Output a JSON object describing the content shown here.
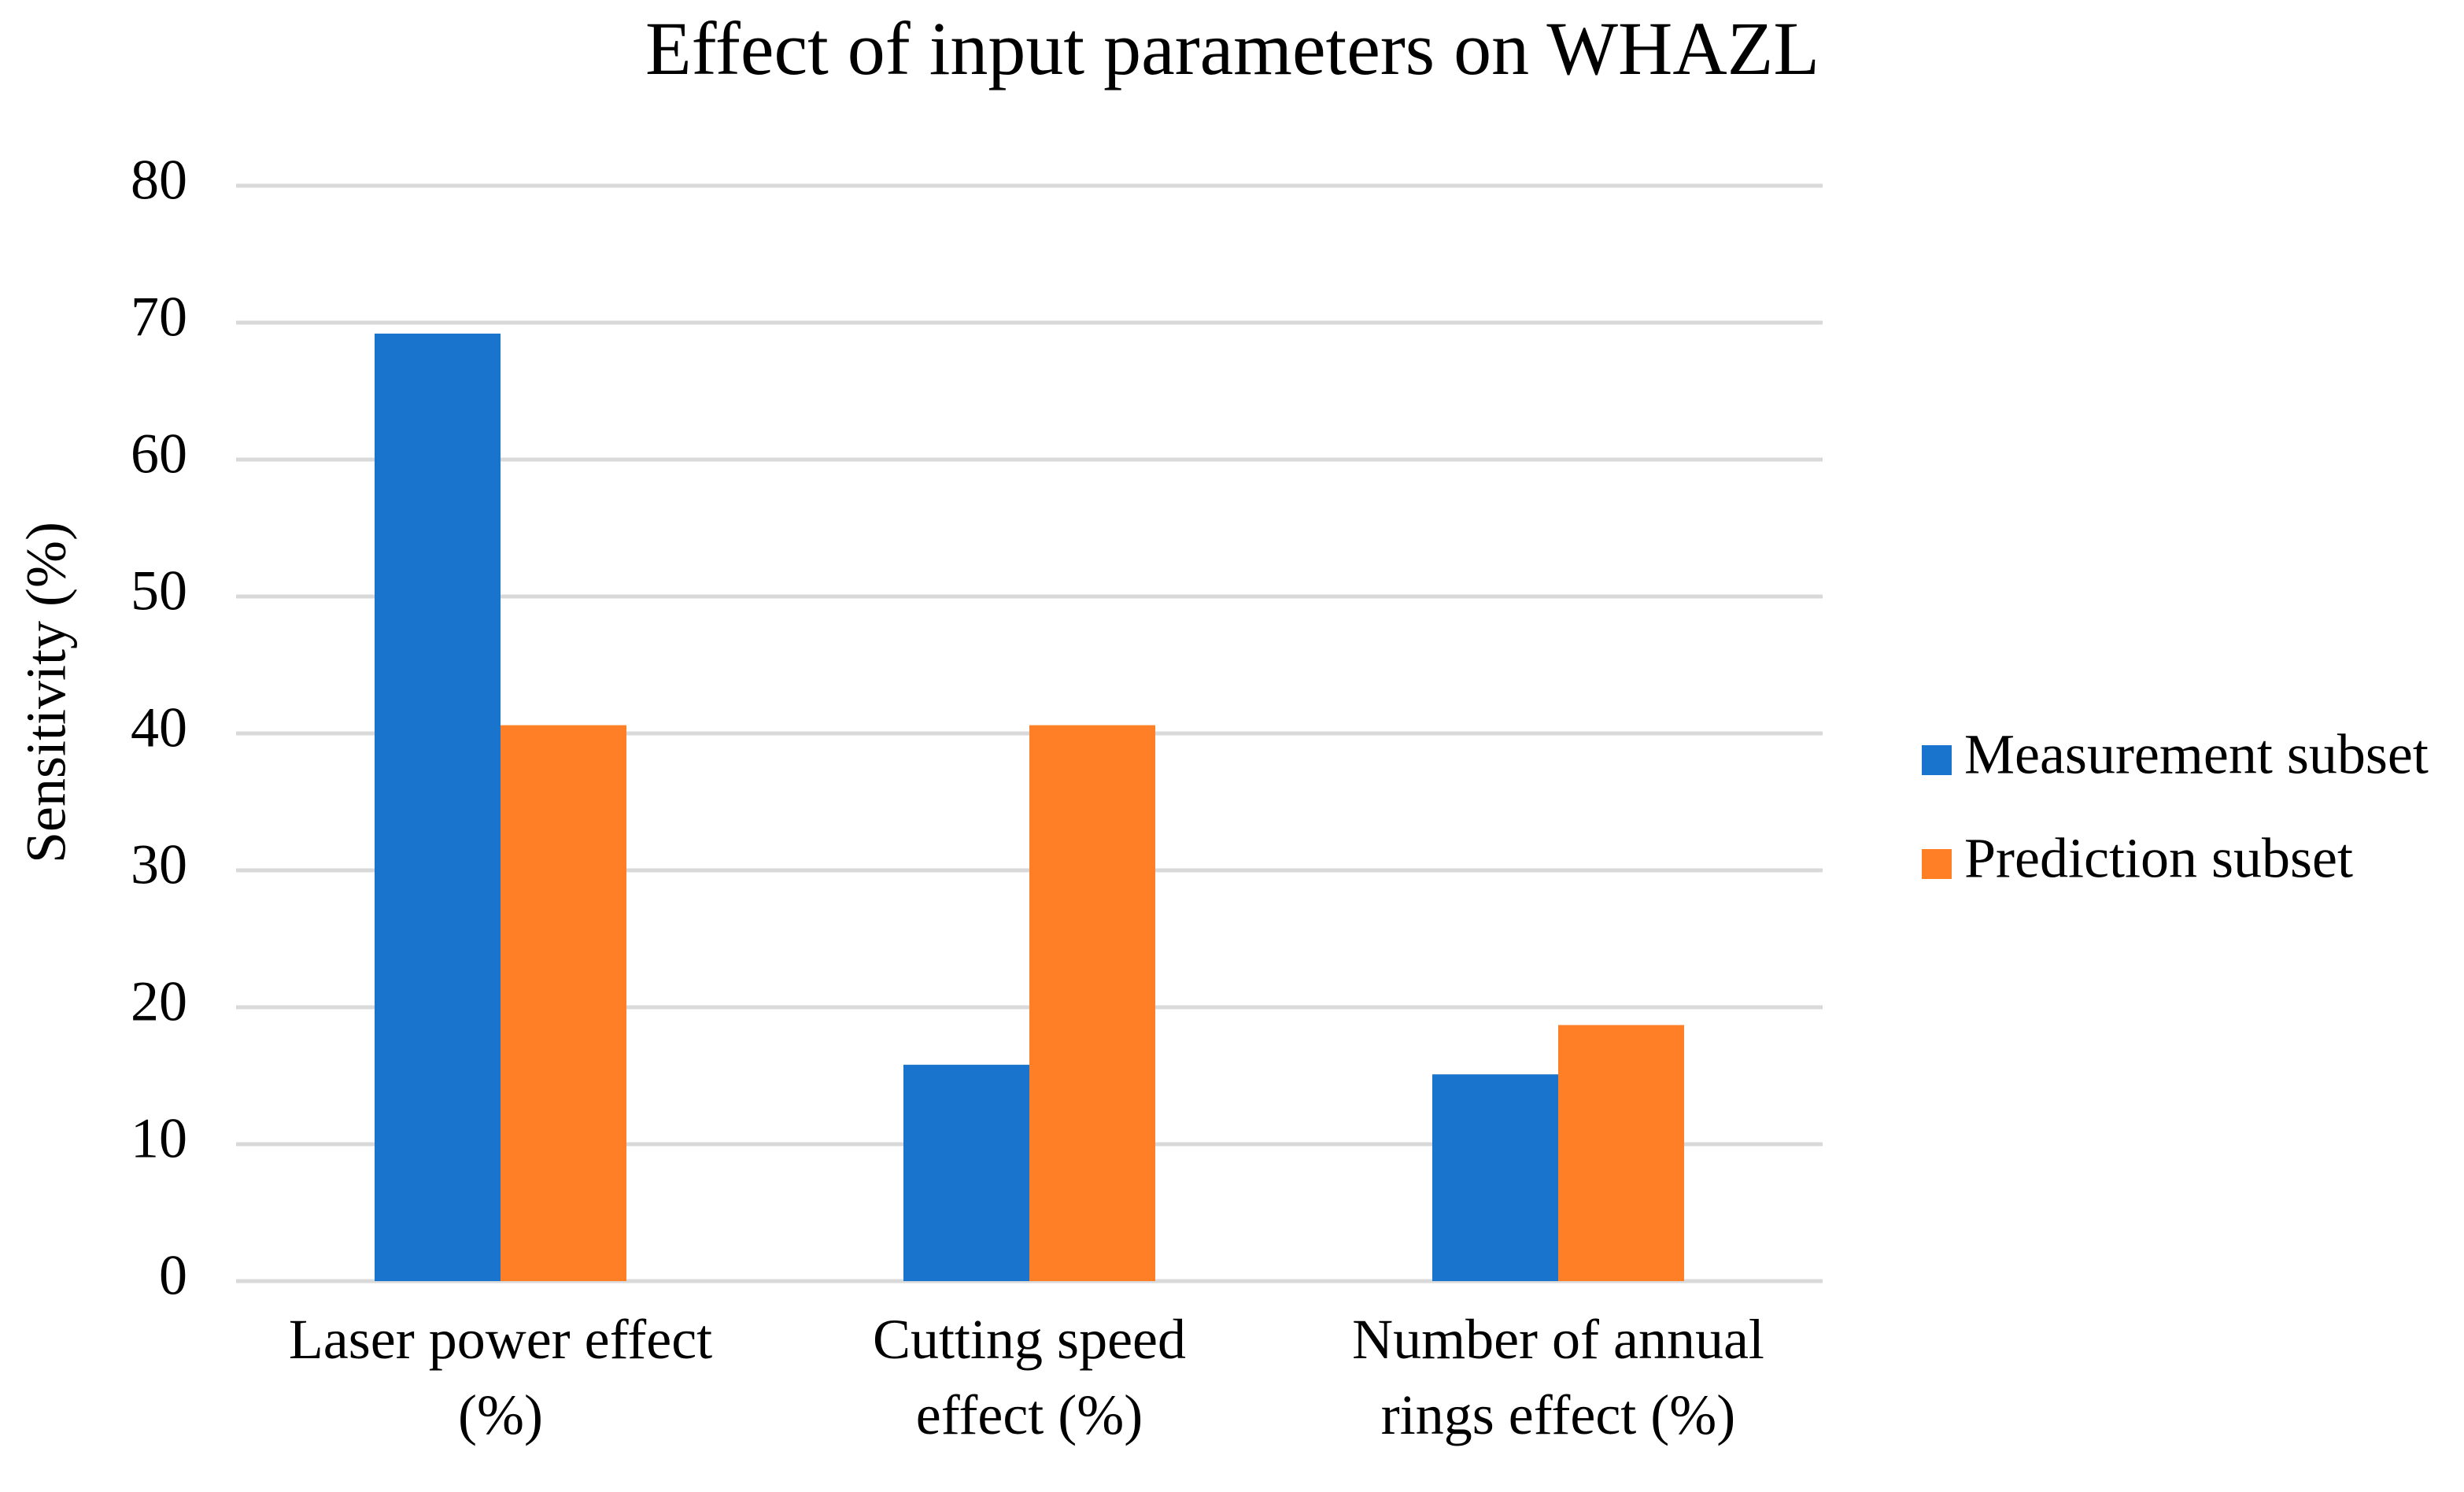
{
  "chart_data": {
    "type": "bar",
    "title": "Effect of input parameters on WHAZL",
    "xlabel": "",
    "ylabel": "Sensitivity (%)",
    "ylim": [
      0,
      80
    ],
    "yticks": [
      0,
      10,
      20,
      30,
      40,
      50,
      60,
      70,
      80
    ],
    "grid": true,
    "legend_position": "right",
    "categories": [
      [
        "Laser power effect",
        "(%)"
      ],
      [
        "Cutting speed",
        "effect (%)"
      ],
      [
        "Number of annual",
        "rings effect (%)"
      ]
    ],
    "series": [
      {
        "name": "Measurement subset",
        "color": "#1874CD",
        "values": [
          69.2,
          15.8,
          15.1
        ]
      },
      {
        "name": "Prediction subset",
        "color": "#FF7F27",
        "values": [
          40.6,
          40.6,
          18.7
        ]
      }
    ]
  },
  "colors": {
    "grid": "#D9D9D9",
    "text": "#000000",
    "background": "#FFFFFF"
  }
}
